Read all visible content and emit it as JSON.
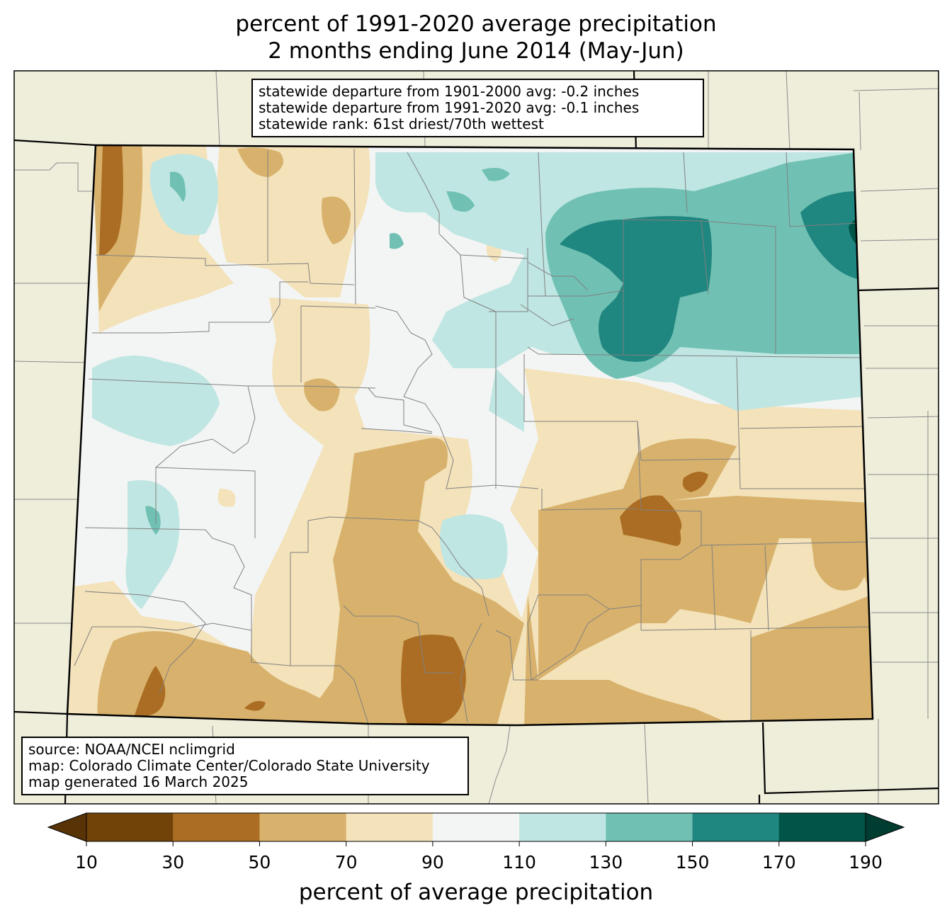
{
  "title": {
    "line1": "percent of 1991-2020 average precipitation",
    "line2": "2 months ending June 2014 (May-Jun)"
  },
  "stats": {
    "line1": "statewide departure from 1901-2000 avg: -0.2 inches",
    "line2": "statewide departure from 1991-2020 avg: -0.1 inches",
    "line3": "statewide rank: 61st driest/70th wettest"
  },
  "source": {
    "line1": "source: NOAA/NCEI nclimgrid",
    "line2": "map: Colorado Climate Center/Colorado State University",
    "line3": "map generated 16 March 2025"
  },
  "colorbar": {
    "label": "percent of average precipitation",
    "ticks": [
      "10",
      "30",
      "50",
      "70",
      "90",
      "110",
      "130",
      "150",
      "170",
      "190"
    ],
    "colors": [
      "#714309",
      "#ab6d23",
      "#d8b26c",
      "#f3e2ba",
      "#f3f5f4",
      "#bfe6e2",
      "#70c1b3",
      "#208680",
      "#005548"
    ],
    "under_color": "#573306",
    "over_color": "#003c30"
  },
  "colors": {
    "land": "#efeedb",
    "state_border": "#000000",
    "county_border": "#808080"
  }
}
